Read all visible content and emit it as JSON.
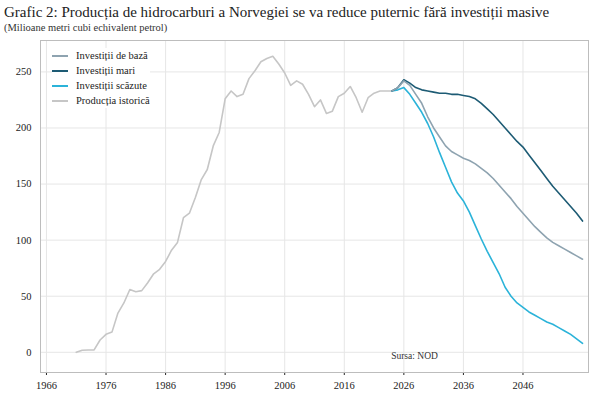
{
  "chart_data": {
    "type": "line",
    "title": "Grafic 2: Producția de hidrocarburi a Norvegiei se va reduce puternic fără investiții masive",
    "subtitle": "(Milioane metri cubi echivalent petrol)",
    "annotations": [
      "Sursa: NOD"
    ],
    "legend": "top-left",
    "grid": true,
    "xlim": [
      1965,
      2057
    ],
    "xticks": [
      1966,
      1976,
      1986,
      1996,
      2006,
      2016,
      2026,
      2036,
      2046
    ],
    "ylim": [
      -18,
      278
    ],
    "yticks": [
      0,
      50,
      100,
      150,
      200,
      250
    ],
    "x": [
      1971,
      1972,
      1973,
      1974,
      1975,
      1976,
      1977,
      1978,
      1979,
      1980,
      1981,
      1982,
      1983,
      1984,
      1985,
      1986,
      1987,
      1988,
      1989,
      1990,
      1991,
      1992,
      1993,
      1994,
      1995,
      1996,
      1997,
      1998,
      1999,
      2000,
      2001,
      2002,
      2003,
      2004,
      2005,
      2006,
      2007,
      2008,
      2009,
      2010,
      2011,
      2012,
      2013,
      2014,
      2015,
      2016,
      2017,
      2018,
      2019,
      2020,
      2021,
      2022,
      2023,
      2024,
      2025,
      2026,
      2027,
      2028,
      2029,
      2030,
      2031,
      2032,
      2033,
      2034,
      2035,
      2036,
      2037,
      2038,
      2039,
      2040,
      2041,
      2042,
      2043,
      2044,
      2045,
      2046,
      2047,
      2048,
      2049,
      2050,
      2051,
      2052,
      2053,
      2054,
      2055,
      2056
    ],
    "series": [
      {
        "name": "Investiții de bază",
        "color": "#8ea3b0",
        "values": [
          null,
          null,
          null,
          null,
          null,
          null,
          null,
          null,
          null,
          null,
          null,
          null,
          null,
          null,
          null,
          null,
          null,
          null,
          null,
          null,
          null,
          null,
          null,
          null,
          null,
          null,
          null,
          null,
          null,
          null,
          null,
          null,
          null,
          null,
          null,
          null,
          null,
          null,
          null,
          null,
          null,
          null,
          null,
          null,
          null,
          null,
          null,
          null,
          null,
          null,
          null,
          null,
          null,
          233,
          236,
          242,
          238,
          230,
          222,
          210,
          200,
          192,
          184,
          179,
          176,
          173,
          171,
          168,
          164,
          160,
          155,
          149,
          143,
          137,
          130,
          124,
          118,
          112,
          107,
          102,
          98,
          95,
          92,
          89,
          86,
          83
        ]
      },
      {
        "name": "Investiții mari",
        "color": "#1d5b74",
        "values": [
          null,
          null,
          null,
          null,
          null,
          null,
          null,
          null,
          null,
          null,
          null,
          null,
          null,
          null,
          null,
          null,
          null,
          null,
          null,
          null,
          null,
          null,
          null,
          null,
          null,
          null,
          null,
          null,
          null,
          null,
          null,
          null,
          null,
          null,
          null,
          null,
          null,
          null,
          null,
          null,
          null,
          null,
          null,
          null,
          null,
          null,
          null,
          null,
          null,
          null,
          null,
          null,
          null,
          233,
          236,
          243,
          240,
          236,
          234,
          233,
          232,
          231,
          231,
          230,
          230,
          229,
          228,
          226,
          222,
          217,
          212,
          206,
          200,
          194,
          188,
          183,
          176,
          169,
          162,
          155,
          148,
          142,
          136,
          130,
          124,
          117
        ]
      },
      {
        "name": "Investiții scăzute",
        "color": "#2bb3d9",
        "values": [
          null,
          null,
          null,
          null,
          null,
          null,
          null,
          null,
          null,
          null,
          null,
          null,
          null,
          null,
          null,
          null,
          null,
          null,
          null,
          null,
          null,
          null,
          null,
          null,
          null,
          null,
          null,
          null,
          null,
          null,
          null,
          null,
          null,
          null,
          null,
          null,
          null,
          null,
          null,
          null,
          null,
          null,
          null,
          null,
          null,
          null,
          null,
          null,
          null,
          null,
          null,
          null,
          null,
          233,
          234,
          236,
          230,
          222,
          214,
          204,
          192,
          178,
          165,
          152,
          142,
          135,
          125,
          113,
          101,
          90,
          80,
          70,
          58,
          50,
          44,
          40,
          36,
          33,
          30,
          27,
          25,
          22,
          19,
          16,
          12,
          8
        ]
      },
      {
        "name": "Producția istorică",
        "color": "#c6c6c6",
        "values": [
          0,
          1.9,
          2,
          2.2,
          11,
          16,
          18,
          35,
          44,
          56,
          54,
          55,
          62,
          70,
          74,
          81,
          91,
          98,
          120,
          124,
          138,
          154,
          163,
          184,
          196,
          226,
          233,
          228,
          230,
          244,
          251,
          259,
          262,
          264,
          257,
          249,
          238,
          242,
          239,
          230,
          219,
          225,
          213,
          215,
          228,
          231,
          237,
          227,
          214,
          227,
          231,
          233,
          233,
          233,
          null,
          null,
          null,
          null,
          null,
          null,
          null,
          null,
          null,
          null,
          null,
          null,
          null,
          null,
          null,
          null,
          null,
          null,
          null,
          null,
          null,
          null,
          null,
          null,
          null,
          null,
          null,
          null,
          null,
          null,
          null,
          null
        ]
      }
    ]
  }
}
